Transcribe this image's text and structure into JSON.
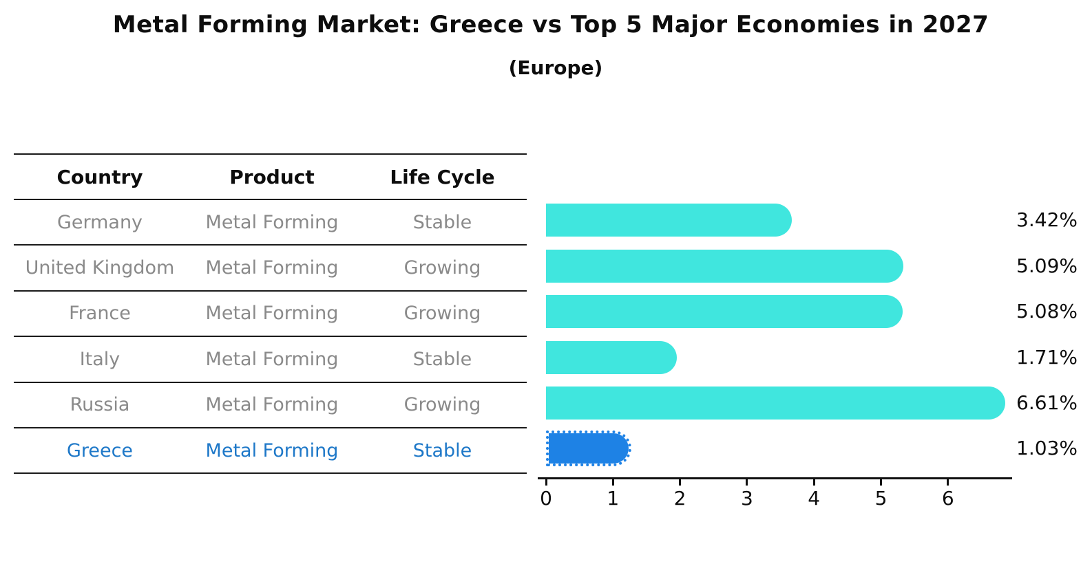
{
  "title": "Metal Forming Market: Greece vs Top 5 Major Economies in 2027",
  "subtitle": "(Europe)",
  "table": {
    "headers": [
      "Country",
      "Product",
      "Life Cycle"
    ],
    "rows": [
      {
        "country": "Germany",
        "product": "Metal Forming",
        "life_cycle": "Stable",
        "highlight": false
      },
      {
        "country": "United Kingdom",
        "product": "Metal Forming",
        "life_cycle": "Growing",
        "highlight": false
      },
      {
        "country": "France",
        "product": "Metal Forming",
        "life_cycle": "Growing",
        "highlight": false
      },
      {
        "country": "Italy",
        "product": "Metal Forming",
        "life_cycle": "Stable",
        "highlight": false
      },
      {
        "country": "Russia",
        "product": "Metal Forming",
        "life_cycle": "Growing",
        "highlight": false
      },
      {
        "country": "Greece",
        "product": "Metal Forming",
        "life_cycle": "Stable",
        "highlight": true
      }
    ]
  },
  "chart_data": {
    "type": "bar",
    "orientation": "horizontal",
    "title": "Metal Forming Market: Greece vs Top 5 Major Economies in 2027",
    "subtitle": "(Europe)",
    "categories": [
      "Germany",
      "United Kingdom",
      "France",
      "Italy",
      "Russia",
      "Greece"
    ],
    "values": [
      3.42,
      5.09,
      5.08,
      1.71,
      6.61,
      1.03
    ],
    "value_labels": [
      "3.42%",
      "5.09%",
      "5.08%",
      "1.71%",
      "6.61%",
      "1.03%"
    ],
    "highlight_index": 5,
    "x_ticks": [
      "0",
      "1",
      "2",
      "3",
      "4",
      "5",
      "6"
    ],
    "xlim": [
      0,
      6.9
    ],
    "grid": false,
    "legend": "none"
  },
  "colors": {
    "bar": "#40e6de",
    "highlight_bar": "#1e82e5",
    "highlight_text": "#1e78c8",
    "muted_text": "#8a8a8a",
    "line": "#1a1a1a"
  }
}
